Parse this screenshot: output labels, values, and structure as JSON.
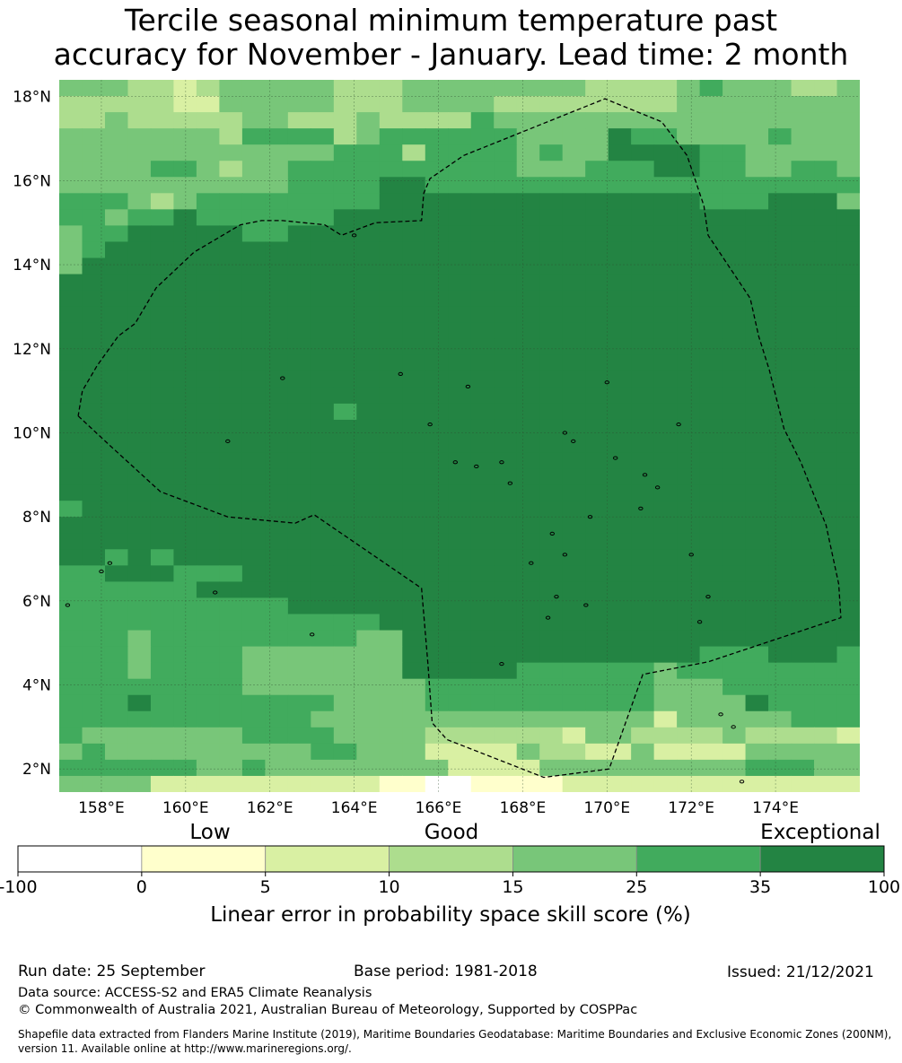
{
  "title": {
    "line1": "Tercile seasonal minimum temperature past",
    "line2": "accuracy for November - January. Lead time: 2 month"
  },
  "map": {
    "lat_labels": [
      "18°N",
      "16°N",
      "14°N",
      "12°N",
      "10°N",
      "8°N",
      "6°N",
      "4°N",
      "2°N"
    ],
    "lat_values": [
      18,
      16,
      14,
      12,
      10,
      8,
      6,
      4,
      2
    ],
    "lon_labels": [
      "158°E",
      "160°E",
      "162°E",
      "164°E",
      "166°E",
      "168°E",
      "170°E",
      "172°E",
      "174°E"
    ],
    "lon_values": [
      158,
      160,
      162,
      164,
      166,
      168,
      170,
      172,
      174
    ],
    "lon_range": [
      157,
      176
    ],
    "lat_range": [
      1.45,
      18.4
    ],
    "eez_boundary": [
      [
        157.45,
        10.4
      ],
      [
        158.2,
        9.7
      ],
      [
        159.4,
        8.6
      ],
      [
        161,
        8.0
      ],
      [
        162.6,
        7.85
      ],
      [
        163.05,
        8.05
      ],
      [
        165.6,
        6.3
      ],
      [
        165.75,
        4.5
      ],
      [
        165.85,
        3.1
      ],
      [
        166.2,
        2.7
      ],
      [
        168.5,
        1.8
      ],
      [
        170.05,
        2.0
      ],
      [
        170.85,
        4.25
      ],
      [
        172.4,
        4.55
      ],
      [
        175.55,
        5.6
      ],
      [
        175.5,
        6.4
      ],
      [
        175.2,
        7.8
      ],
      [
        174.6,
        9.3
      ],
      [
        174.2,
        10.1
      ],
      [
        173.85,
        11.5
      ],
      [
        173.6,
        12.3
      ],
      [
        173.4,
        13.2
      ],
      [
        172.4,
        14.7
      ],
      [
        172.3,
        15.4
      ],
      [
        171.9,
        16.6
      ],
      [
        171.3,
        17.4
      ],
      [
        169.95,
        17.95
      ],
      [
        166.6,
        16.6
      ],
      [
        165.8,
        16.05
      ],
      [
        165.65,
        15.7
      ],
      [
        165.6,
        15.05
      ],
      [
        164.5,
        15.0
      ],
      [
        163.7,
        14.7
      ],
      [
        163.3,
        14.95
      ],
      [
        162.3,
        15.05
      ],
      [
        161.8,
        15.05
      ],
      [
        161.3,
        14.95
      ],
      [
        160.2,
        14.3
      ],
      [
        159.3,
        13.45
      ],
      [
        158.8,
        12.6
      ],
      [
        158.4,
        12.3
      ],
      [
        157.9,
        11.6
      ],
      [
        157.55,
        11.0
      ],
      [
        157.45,
        10.4
      ]
    ],
    "islands": [
      [
        158.2,
        6.9
      ],
      [
        158.0,
        6.7
      ],
      [
        157.2,
        5.9
      ],
      [
        167.5,
        4.5
      ],
      [
        168.2,
        6.9
      ],
      [
        172.0,
        7.1
      ],
      [
        172.2,
        5.5
      ],
      [
        172.4,
        6.1
      ],
      [
        173.0,
        3.0
      ],
      [
        172.7,
        3.3
      ],
      [
        173.2,
        1.7
      ],
      [
        165.1,
        11.4
      ],
      [
        162.3,
        11.3
      ],
      [
        161.0,
        9.8
      ],
      [
        166.7,
        11.1
      ],
      [
        170.0,
        11.2
      ],
      [
        171.7,
        10.2
      ],
      [
        170.2,
        9.4
      ],
      [
        169.2,
        9.8
      ],
      [
        169.0,
        10.0
      ],
      [
        167.7,
        8.8
      ],
      [
        168.7,
        7.6
      ],
      [
        169.0,
        7.1
      ],
      [
        170.8,
        8.2
      ],
      [
        171.2,
        8.7
      ],
      [
        170.9,
        9.0
      ],
      [
        168.6,
        5.6
      ],
      [
        169.5,
        5.9
      ],
      [
        166.9,
        9.2
      ],
      [
        164.0,
        14.7
      ],
      [
        169.6,
        8.0
      ],
      [
        168.8,
        6.1
      ],
      [
        165.8,
        10.2
      ],
      [
        166.4,
        9.3
      ],
      [
        167.5,
        9.3
      ],
      [
        160.7,
        6.2
      ],
      [
        163.0,
        5.2
      ]
    ]
  },
  "colorbar": {
    "category_labels": [
      "Low",
      "Good",
      "Exceptional"
    ],
    "tick_labels": [
      "-100",
      "0",
      "5",
      "10",
      "15",
      "25",
      "35",
      "100"
    ],
    "colors": [
      "#ffffff",
      "#ffffcc",
      "#d9f0a3",
      "#addd8e",
      "#78c679",
      "#41ab5d",
      "#238443"
    ],
    "axis_label": "Linear error in probability space skill score (%)"
  },
  "footer": {
    "run_date": "Run date: 25 September",
    "base_period": "Base period: 1981-2018",
    "issued": "Issued: 21/12/2021",
    "data_source": "Data source: ACCESS-S2 and ERA5 Climate Reanalysis",
    "copyright": "© Commonwealth of Australia 2021, Australian Bureau of Meteorology, Supported by COSPPac",
    "shapefile": "Shapefile data extracted from Flanders Marine Institute (2019), Maritime Boundaries Geodatabase: Maritime Boundaries and Exclusive Economic Zones (200NM), version 11. Available online at http://www.marineregions.org/."
  },
  "skill_grid": {
    "note": "Colour class index (0 = -100..0 ... 6 = 35..100); rows north to south, columns west to east",
    "rows": [
      "44433234444433344444444333345444334",
      "33333224444433344443333333344444444",
      "33433333443334333354444444444444444",
      "44444443555534555555444465544445444",
      "44444444444455535555454466665544444",
      "44445543445555555555444555665544554",
      "44444444445555665555555555555555555",
      "55543455555555666666666666665556664",
      "55455655555566666666666666666666666",
      "45566666556666666666666666666666666",
      "45666666666666666666666666666666666",
      "46666666666666666666666666666666666",
      "66666666666666666666666666666666666",
      "66666666666666666666666666666666666",
      "66666666666666666666666666666666666",
      "66666666666666666666666666666666666",
      "66666666666666666666666666666666666",
      "66666666666666666666666666666666666",
      "66666666666666666666666666666666666",
      "66666666666666666666666666666666666",
      "66666666666656666666666666666666666",
      "66666666666666666666666666666666666",
      "66666666666666666666666666666666666",
      "66666666666666666666666666666666666",
      "66666666666666666666666666666666666",
      "66666666666666666666666666666666666",
      "56666666666666666666666666666666666",
      "66666666666666666666666666666666666",
      "66666666666666666666666666666666666",
      "66565666666666666666666666666666666",
      "55666555666666666666666666666666666",
      "55555566666666666666666666666666666",
      "55555555556666666666666666666666666",
      "55555555555555666666666666666666666",
      "55545555555554466666666666666666666",
      "55545555444444466666666666665556665",
      "55545555444444466666555555455555555",
      "55555555444444445555555555444555555",
      "55565555555544445555555555444465555",
      "55555555555444444444444444244444555",
      "54444444555544443333332443333433332",
      "45444444444554442222433224222244444",
      "55555544544444444222244444444455544",
      "44442222222222110011112222222222222"
    ]
  }
}
